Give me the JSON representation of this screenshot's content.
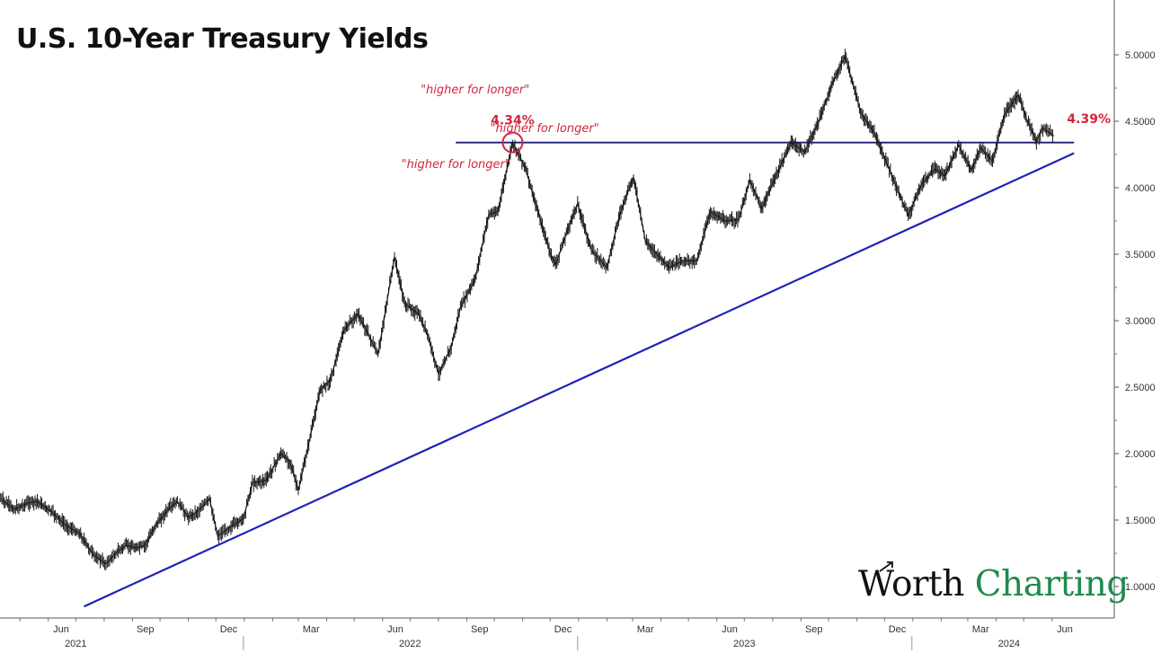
{
  "title": "U.S. 10-Year Treasury Yields",
  "logo": {
    "word1": "Worth",
    "word2": "Charting"
  },
  "colors": {
    "price": "#1a1a1a",
    "trendline": "#1f22b8",
    "resistance": "#1b1f7a",
    "annotation": "#d2263a",
    "logo_green": "#1f8a4c"
  },
  "chart_data": {
    "type": "line",
    "title": "U.S. 10-Year Treasury Yields",
    "xlabel": "",
    "ylabel": "",
    "ylim": [
      0.8,
      5.3
    ],
    "y_ticks": [
      "5.0000",
      "4.5000",
      "4.0000",
      "3.5000",
      "3.0000",
      "2.5000",
      "2.0000",
      "1.5000",
      "1.0000"
    ],
    "x_ticks": [
      {
        "label": "Jun",
        "date": "2021-06-15"
      },
      {
        "label": "Sep",
        "date": "2021-09-15"
      },
      {
        "label": "Dec",
        "date": "2021-12-15"
      },
      {
        "label": "Mar",
        "date": "2022-03-15"
      },
      {
        "label": "Jun",
        "date": "2022-06-15"
      },
      {
        "label": "Sep",
        "date": "2022-09-15"
      },
      {
        "label": "Dec",
        "date": "2022-12-15"
      },
      {
        "label": "Mar",
        "date": "2023-03-15"
      },
      {
        "label": "Jun",
        "date": "2023-06-15"
      },
      {
        "label": "Sep",
        "date": "2023-09-15"
      },
      {
        "label": "Dec",
        "date": "2023-12-15"
      },
      {
        "label": "Mar",
        "date": "2024-03-15"
      },
      {
        "label": "Jun",
        "date": "2024-06-15"
      }
    ],
    "years": [
      {
        "label": "2021",
        "date": "2021-07-01",
        "sep": "2021-12-31"
      },
      {
        "label": "2022",
        "date": "2022-07-01",
        "sep": "2022-12-31"
      },
      {
        "label": "2023",
        "date": "2023-07-01",
        "sep": "2023-12-31"
      },
      {
        "label": "2024",
        "date": "2024-04-15"
      }
    ],
    "series": [
      {
        "points": [
          [
            "2021-04-10",
            1.66
          ],
          [
            "2021-04-25",
            1.58
          ],
          [
            "2021-05-10",
            1.63
          ],
          [
            "2021-05-20",
            1.64
          ],
          [
            "2021-06-05",
            1.56
          ],
          [
            "2021-06-20",
            1.46
          ],
          [
            "2021-07-05",
            1.4
          ],
          [
            "2021-07-20",
            1.24
          ],
          [
            "2021-08-03",
            1.17
          ],
          [
            "2021-08-15",
            1.26
          ],
          [
            "2021-08-25",
            1.31
          ],
          [
            "2021-09-05",
            1.29
          ],
          [
            "2021-09-15",
            1.31
          ],
          [
            "2021-09-25",
            1.45
          ],
          [
            "2021-10-10",
            1.58
          ],
          [
            "2021-10-20",
            1.64
          ],
          [
            "2021-11-01",
            1.52
          ],
          [
            "2021-11-12",
            1.57
          ],
          [
            "2021-11-24",
            1.66
          ],
          [
            "2021-12-03",
            1.38
          ],
          [
            "2021-12-15",
            1.44
          ],
          [
            "2021-12-31",
            1.51
          ],
          [
            "2022-01-10",
            1.78
          ],
          [
            "2022-01-25",
            1.8
          ],
          [
            "2022-02-10",
            2.0
          ],
          [
            "2022-02-20",
            1.94
          ],
          [
            "2022-03-01",
            1.72
          ],
          [
            "2022-03-10",
            2.0
          ],
          [
            "2022-03-25",
            2.48
          ],
          [
            "2022-04-05",
            2.55
          ],
          [
            "2022-04-20",
            2.93
          ],
          [
            "2022-05-05",
            3.05
          ],
          [
            "2022-05-15",
            2.92
          ],
          [
            "2022-05-27",
            2.74
          ],
          [
            "2022-06-14",
            3.48
          ],
          [
            "2022-06-25",
            3.13
          ],
          [
            "2022-07-10",
            3.05
          ],
          [
            "2022-07-20",
            2.9
          ],
          [
            "2022-08-01",
            2.6
          ],
          [
            "2022-08-15",
            2.8
          ],
          [
            "2022-08-25",
            3.1
          ],
          [
            "2022-09-10",
            3.31
          ],
          [
            "2022-09-25",
            3.8
          ],
          [
            "2022-10-05",
            3.82
          ],
          [
            "2022-10-21",
            4.34
          ],
          [
            "2022-11-04",
            4.15
          ],
          [
            "2022-11-15",
            3.88
          ],
          [
            "2022-12-01",
            3.51
          ],
          [
            "2022-12-07",
            3.42
          ],
          [
            "2022-12-20",
            3.68
          ],
          [
            "2022-12-31",
            3.88
          ],
          [
            "2023-01-15",
            3.53
          ],
          [
            "2023-02-01",
            3.4
          ],
          [
            "2023-02-15",
            3.8
          ],
          [
            "2023-03-02",
            4.08
          ],
          [
            "2023-03-15",
            3.6
          ],
          [
            "2023-03-30",
            3.48
          ],
          [
            "2023-04-10",
            3.4
          ],
          [
            "2023-04-25",
            3.45
          ],
          [
            "2023-05-10",
            3.45
          ],
          [
            "2023-05-25",
            3.82
          ],
          [
            "2023-06-10",
            3.75
          ],
          [
            "2023-06-25",
            3.76
          ],
          [
            "2023-07-07",
            4.06
          ],
          [
            "2023-07-20",
            3.84
          ],
          [
            "2023-08-05",
            4.1
          ],
          [
            "2023-08-21",
            4.34
          ],
          [
            "2023-09-05",
            4.27
          ],
          [
            "2023-09-20",
            4.49
          ],
          [
            "2023-10-05",
            4.78
          ],
          [
            "2023-10-19",
            4.99
          ],
          [
            "2023-11-05",
            4.57
          ],
          [
            "2023-11-20",
            4.41
          ],
          [
            "2023-12-05",
            4.16
          ],
          [
            "2023-12-27",
            3.79
          ],
          [
            "2024-01-10",
            4.02
          ],
          [
            "2024-01-25",
            4.14
          ],
          [
            "2024-02-05",
            4.09
          ],
          [
            "2024-02-20",
            4.32
          ],
          [
            "2024-03-05",
            4.13
          ],
          [
            "2024-03-15",
            4.3
          ],
          [
            "2024-03-28",
            4.2
          ],
          [
            "2024-04-10",
            4.55
          ],
          [
            "2024-04-25",
            4.7
          ],
          [
            "2024-05-05",
            4.5
          ],
          [
            "2024-05-15",
            4.35
          ],
          [
            "2024-05-22",
            4.45
          ],
          [
            "2024-06-03",
            4.39
          ]
        ]
      }
    ],
    "trendline": [
      [
        "2021-07-10",
        0.85
      ],
      [
        "2024-06-25",
        4.26
      ]
    ],
    "resistance": {
      "value": 4.34,
      "from": "2022-08-20",
      "to": "2024-06-25"
    },
    "highlight_point": {
      "date": "2022-10-21",
      "value": 4.34,
      "label": "4.34%"
    },
    "last_value_label": "4.39%",
    "annotations": [
      {
        "text": "\"higher for longer\"",
        "date": "2022-09-10",
        "value": 4.71
      },
      {
        "text": "\"higher for longer\"",
        "date": "2022-11-25",
        "value": 4.42
      },
      {
        "text": "\"higher for longer\"",
        "date": "2022-08-20",
        "value": 4.15
      }
    ]
  }
}
